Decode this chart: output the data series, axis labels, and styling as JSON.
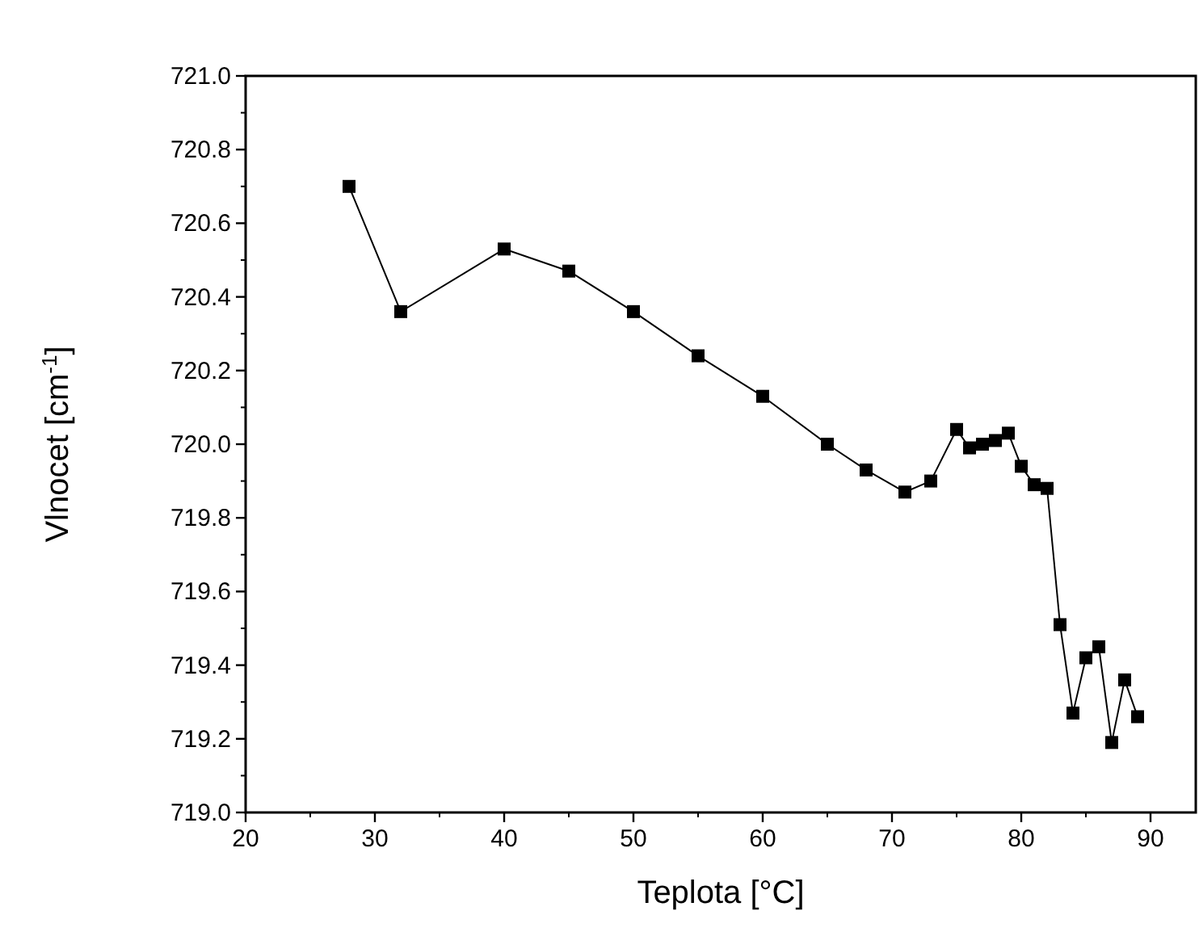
{
  "chart_data": {
    "type": "line",
    "xlabel": "Teplota [°C]",
    "ylabel": "Vlnocet [cm$^{-1}$]",
    "x": [
      28,
      32,
      40,
      45,
      50,
      55,
      60,
      65,
      68,
      71,
      73,
      75,
      76,
      77,
      78,
      79,
      80,
      81,
      82,
      83,
      84,
      85,
      86,
      87,
      88,
      89
    ],
    "series": [
      {
        "color": "#000000",
        "values": [
          720.7,
          720.36,
          720.53,
          720.47,
          720.36,
          720.24,
          720.13,
          720.0,
          719.93,
          719.87,
          719.9,
          720.04,
          719.99,
          720.0,
          720.01,
          720.03,
          719.94,
          719.89,
          719.88,
          719.51,
          719.27,
          719.42,
          719.45,
          719.19,
          719.36,
          719.26
        ]
      }
    ],
    "xlim": [
      20,
      93.5
    ],
    "xticks": [
      20,
      30,
      40,
      50,
      60,
      70,
      80,
      90
    ],
    "ylim": [
      719.0,
      721.0
    ],
    "yticks": [
      {
        "value": 719,
        "label": "719.0"
      },
      719.2,
      719.4,
      719.6,
      719.8,
      {
        "value": 720,
        "label": "720.0"
      },
      720.2,
      720.4,
      720.6,
      720.8,
      {
        "value": 721,
        "label": "721.0"
      }
    ],
    "marker": "square",
    "line_style": "solid"
  }
}
